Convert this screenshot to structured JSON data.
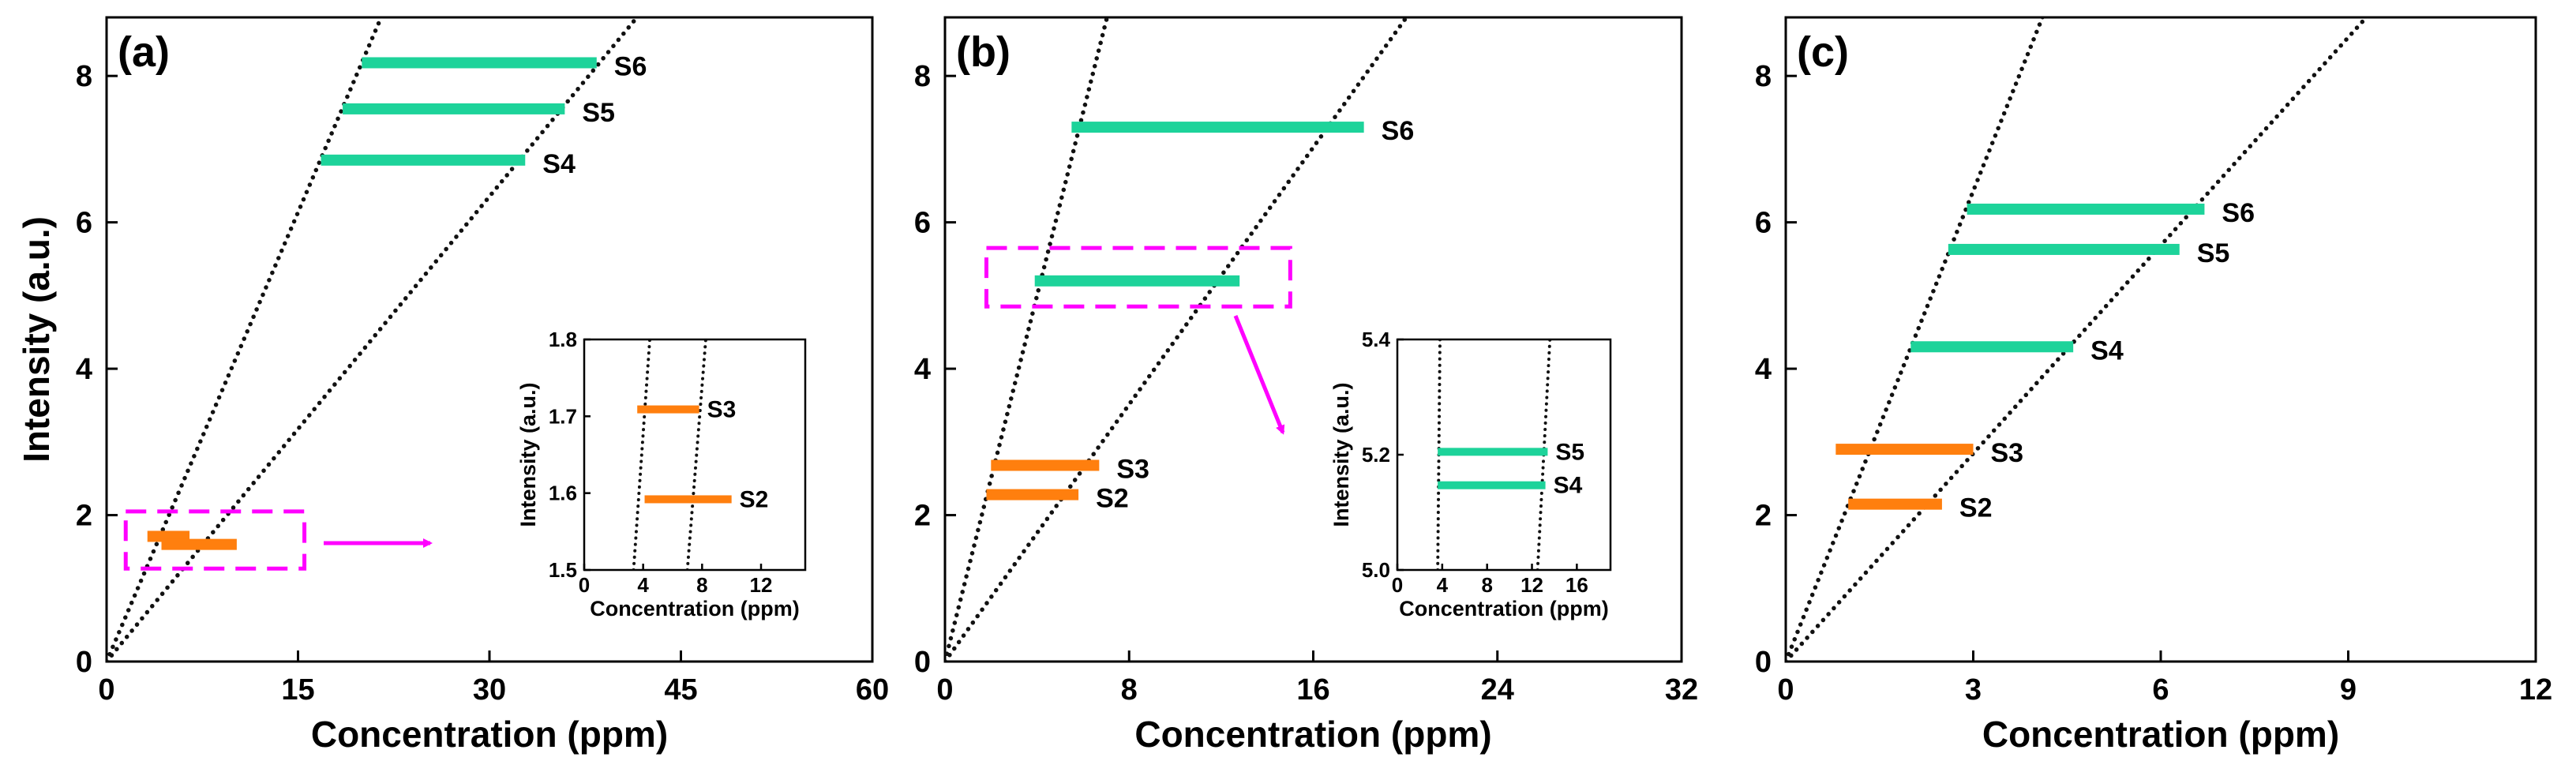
{
  "chart_data": [
    {
      "type": "line",
      "panel_label": "(a)",
      "xlabel": "Concentration (ppm)",
      "ylabel": "Intensity (a.u.)",
      "xlim": [
        0,
        60
      ],
      "ylim": [
        0,
        8.8
      ],
      "x_ticks": [
        0,
        15,
        30,
        45,
        60
      ],
      "y_ticks": [
        0,
        2,
        4,
        6,
        8
      ],
      "boundary_lines": [
        {
          "name": "upper",
          "x": [
            0,
            22.0
          ],
          "y": [
            0,
            9.0
          ]
        },
        {
          "name": "lower",
          "x": [
            0,
            42.5
          ],
          "y": [
            0,
            9.0
          ]
        }
      ],
      "segments": [
        {
          "name": "S6",
          "x": [
            20.0,
            38.4
          ],
          "y": 8.18,
          "color": "#1dd39a"
        },
        {
          "name": "S5",
          "x": [
            18.5,
            35.9
          ],
          "y": 7.55,
          "color": "#1dd39a"
        },
        {
          "name": "S4",
          "x": [
            16.8,
            32.8
          ],
          "y": 6.85,
          "color": "#1dd39a"
        },
        {
          "name": "",
          "x": [
            3.2,
            6.5
          ],
          "y": 1.71,
          "color": "#ff7f0e"
        },
        {
          "name": "",
          "x": [
            4.3,
            10.2
          ],
          "y": 1.6,
          "color": "#ff7f0e"
        }
      ],
      "highlight_box": {
        "x": [
          1.5,
          15.5
        ],
        "y": [
          1.27,
          2.05
        ]
      },
      "inset": {
        "xlabel": "Concentration (ppm)",
        "ylabel": "Intensity (a.u.)",
        "xlim": [
          0,
          15
        ],
        "ylim": [
          1.5,
          1.8
        ],
        "x_ticks": [
          0,
          4,
          8,
          12
        ],
        "y_ticks": [
          1.5,
          1.6,
          1.7,
          1.8
        ],
        "boundary_lines": [
          {
            "x": [
              3.35,
              4.45
            ],
            "y": [
              1.5,
              1.8
            ]
          },
          {
            "x": [
              7.0,
              8.25
            ],
            "y": [
              1.5,
              1.8
            ]
          }
        ],
        "segments": [
          {
            "name": "S3",
            "x": [
              3.6,
              7.8
            ],
            "y": 1.709,
            "color": "#ff7f0e"
          },
          {
            "name": "S2",
            "x": [
              4.1,
              10.0
            ],
            "y": 1.592,
            "color": "#ff7f0e"
          }
        ]
      }
    },
    {
      "type": "line",
      "panel_label": "(b)",
      "xlabel": "Concentration (ppm)",
      "ylabel": "",
      "xlim": [
        0,
        32
      ],
      "ylim": [
        0,
        8.8
      ],
      "x_ticks": [
        0,
        8,
        16,
        24,
        32
      ],
      "y_ticks": [
        0,
        2,
        4,
        6,
        8
      ],
      "boundary_lines": [
        {
          "name": "upper",
          "x": [
            0,
            7.2
          ],
          "y": [
            0,
            9.0
          ]
        },
        {
          "name": "lower",
          "x": [
            0,
            20.5
          ],
          "y": [
            0,
            9.0
          ]
        }
      ],
      "segments": [
        {
          "name": "S6",
          "x": [
            5.5,
            18.2
          ],
          "y": 7.3,
          "color": "#1dd39a"
        },
        {
          "name": "",
          "x": [
            3.9,
            12.8
          ],
          "y": 5.2,
          "color": "#1dd39a"
        },
        {
          "name": "S3",
          "x": [
            2.0,
            6.7
          ],
          "y": 2.68,
          "color": "#ff7f0e"
        },
        {
          "name": "S2",
          "x": [
            1.8,
            5.8
          ],
          "y": 2.28,
          "color": "#ff7f0e"
        }
      ],
      "highlight_box": {
        "x": [
          1.8,
          15.0
        ],
        "y": [
          4.85,
          5.65
        ]
      },
      "inset": {
        "xlabel": "Concentration (ppm)",
        "ylabel": "Intensity (a.u.)",
        "xlim": [
          0,
          19
        ],
        "ylim": [
          5.0,
          5.4
        ],
        "x_ticks": [
          0,
          4,
          8,
          12,
          16
        ],
        "y_ticks": [
          5.0,
          5.2,
          5.4
        ],
        "boundary_lines": [
          {
            "x": [
              3.6,
              3.8
            ],
            "y": [
              5.0,
              5.4
            ]
          },
          {
            "x": [
              12.5,
              13.6
            ],
            "y": [
              5.0,
              5.4
            ]
          }
        ],
        "segments": [
          {
            "name": "S5",
            "x": [
              3.6,
              13.4
            ],
            "y": 5.205,
            "color": "#1dd39a"
          },
          {
            "name": "S4",
            "x": [
              3.6,
              13.2
            ],
            "y": 5.147,
            "color": "#1dd39a"
          }
        ]
      }
    },
    {
      "type": "line",
      "panel_label": "(c)",
      "xlabel": "Concentration (ppm)",
      "ylabel": "",
      "xlim": [
        0,
        12
      ],
      "ylim": [
        0,
        8.8
      ],
      "x_ticks": [
        0,
        3,
        6,
        9,
        12
      ],
      "y_ticks": [
        0,
        2,
        4,
        6,
        8
      ],
      "boundary_lines": [
        {
          "name": "upper",
          "x": [
            0,
            4.2
          ],
          "y": [
            0,
            9.0
          ]
        },
        {
          "name": "lower",
          "x": [
            0,
            9.5
          ],
          "y": [
            0,
            9.0
          ]
        }
      ],
      "segments": [
        {
          "name": "S6",
          "x": [
            2.9,
            6.7
          ],
          "y": 6.18,
          "color": "#1dd39a"
        },
        {
          "name": "S5",
          "x": [
            2.6,
            6.3
          ],
          "y": 5.63,
          "color": "#1dd39a"
        },
        {
          "name": "S4",
          "x": [
            2.0,
            4.6
          ],
          "y": 4.3,
          "color": "#1dd39a"
        },
        {
          "name": "S3",
          "x": [
            0.8,
            3.0
          ],
          "y": 2.9,
          "color": "#ff7f0e"
        },
        {
          "name": "S2",
          "x": [
            1.0,
            2.5
          ],
          "y": 2.15,
          "color": "#ff7f0e"
        }
      ]
    }
  ],
  "colors": {
    "box": "#ff00ff",
    "arrow": "#ff00ff",
    "axis": "#000000"
  }
}
